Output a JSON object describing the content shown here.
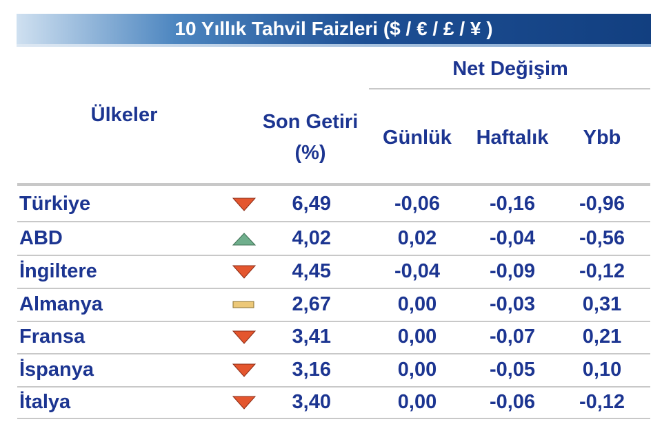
{
  "header": {
    "title": "10 Yıllık Tahvil Faizleri ($ / € / £ / ¥ )"
  },
  "table": {
    "group_header": "Net Değişim",
    "columns": {
      "country": "Ülkeler",
      "yield_line1": "Son Getiri",
      "yield_line2": "(%)",
      "daily": "Günlük",
      "weekly": "Haftalık",
      "ytd": "Ybb"
    },
    "rows": [
      [
        "Türkiye",
        "6,49",
        "-0,06",
        "-0,16",
        "-0,96"
      ],
      [
        "ABD",
        "4,02",
        "0,02",
        "-0,04",
        "-0,56"
      ],
      [
        "İngiltere",
        "4,45",
        "-0,04",
        "-0,09",
        "-0,12"
      ],
      [
        "Almanya",
        "2,67",
        "0,00",
        "-0,03",
        "0,31"
      ],
      [
        "Fransa",
        "3,41",
        "0,00",
        "-0,07",
        "0,21"
      ],
      [
        "İspanya",
        "3,16",
        "0,00",
        "-0,05",
        "0,10"
      ],
      [
        "İtalya",
        "3,40",
        "0,00",
        "-0,06",
        "-0,12"
      ]
    ]
  }
}
